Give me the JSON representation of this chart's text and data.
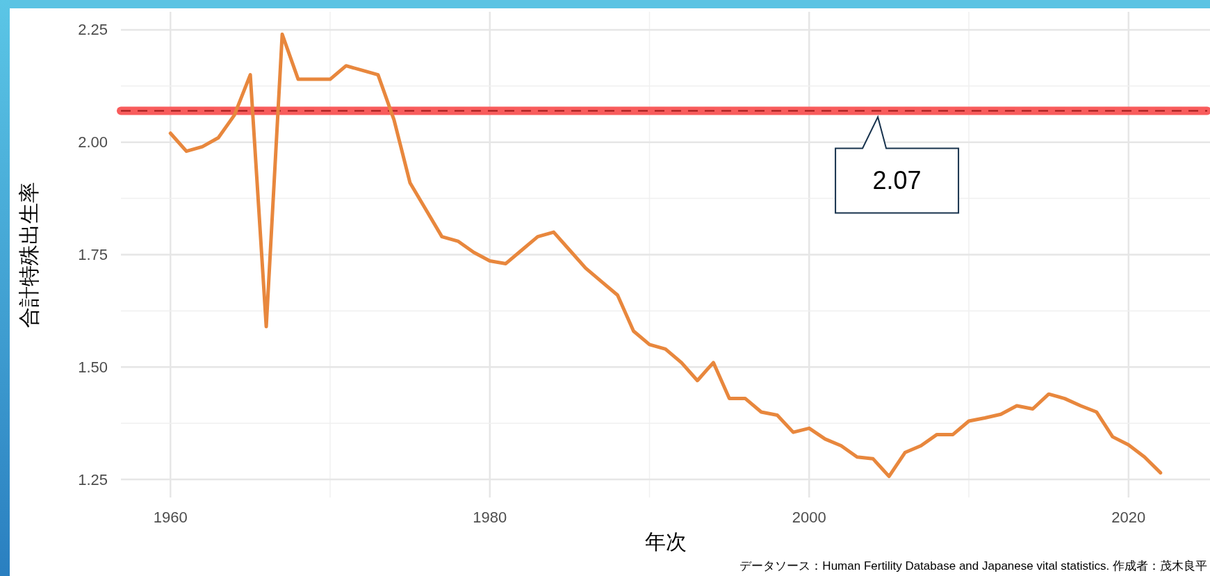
{
  "chart_data": {
    "type": "line",
    "ylabel": "合計特殊出生率",
    "xlabel": "年次",
    "annotations": [
      {
        "text": "2.07",
        "x": 2004.3,
        "y": 2.07
      },
      "データソース：Human Fertility Database and Japanese vital statistics. 作成者：茂木良平"
    ],
    "x": [
      1960,
      1961,
      1962,
      1963,
      1964,
      1965,
      1966,
      1967,
      1968,
      1969,
      1970,
      1971,
      1972,
      1973,
      1974,
      1975,
      1976,
      1977,
      1978,
      1979,
      1980,
      1981,
      1982,
      1983,
      1984,
      1985,
      1986,
      1987,
      1988,
      1989,
      1990,
      1991,
      1992,
      1993,
      1994,
      1995,
      1996,
      1997,
      1998,
      1999,
      2000,
      2001,
      2002,
      2003,
      2004,
      2005,
      2006,
      2007,
      2008,
      2009,
      2010,
      2011,
      2012,
      2013,
      2014,
      2015,
      2016,
      2017,
      2018,
      2019,
      2020,
      2021,
      2022
    ],
    "series": [
      {
        "color": "#e8873d",
        "values": [
          2.02,
          1.98,
          1.99,
          2.01,
          2.06,
          2.15,
          1.59,
          2.24,
          2.14,
          2.14,
          2.14,
          2.17,
          2.16,
          2.15,
          2.05,
          1.91,
          1.85,
          1.79,
          1.78,
          1.755,
          1.736,
          1.73,
          1.76,
          1.79,
          1.8,
          1.76,
          1.72,
          1.69,
          1.66,
          1.58,
          1.55,
          1.54,
          1.51,
          1.47,
          1.51,
          1.43,
          1.43,
          1.4,
          1.393,
          1.355,
          1.364,
          1.34,
          1.325,
          1.3,
          1.296,
          1.257,
          1.31,
          1.325,
          1.35,
          1.35,
          1.38,
          1.387,
          1.395,
          1.414,
          1.407,
          1.44,
          1.43,
          1.414,
          1.4,
          1.345,
          1.327,
          1.3,
          1.265
        ]
      }
    ],
    "xlim": [
      1956.9,
      2025.1
    ],
    "ylim": [
      1.21,
      2.29
    ],
    "xticks": [
      {
        "value": 1960,
        "label": "1960"
      },
      {
        "value": 1970,
        "label": null
      },
      {
        "value": 1980,
        "label": "1980"
      },
      {
        "value": 1990,
        "label": null
      },
      {
        "value": 2000,
        "label": "2000"
      },
      {
        "value": 2010,
        "label": null
      },
      {
        "value": 2020,
        "label": "2020"
      }
    ],
    "yticks": [
      {
        "value": 1.25,
        "label": "1.25"
      },
      {
        "value": 1.375,
        "label": null
      },
      {
        "value": 1.5,
        "label": "1.50"
      },
      {
        "value": 1.625,
        "label": null
      },
      {
        "value": 1.75,
        "label": "1.75"
      },
      {
        "value": 1.875,
        "label": null
      },
      {
        "value": 2.0,
        "label": "2.00"
      },
      {
        "value": 2.125,
        "label": null
      },
      {
        "value": 2.25,
        "label": "2.25"
      }
    ],
    "ref_lines": [
      {
        "axis": "y",
        "value": 2.07,
        "color": "#f85c5c",
        "line_style": "solid"
      },
      {
        "axis": "y",
        "value": 2.07,
        "color": "#a01a1a",
        "line_style": "dashed"
      }
    ],
    "grid": true
  }
}
